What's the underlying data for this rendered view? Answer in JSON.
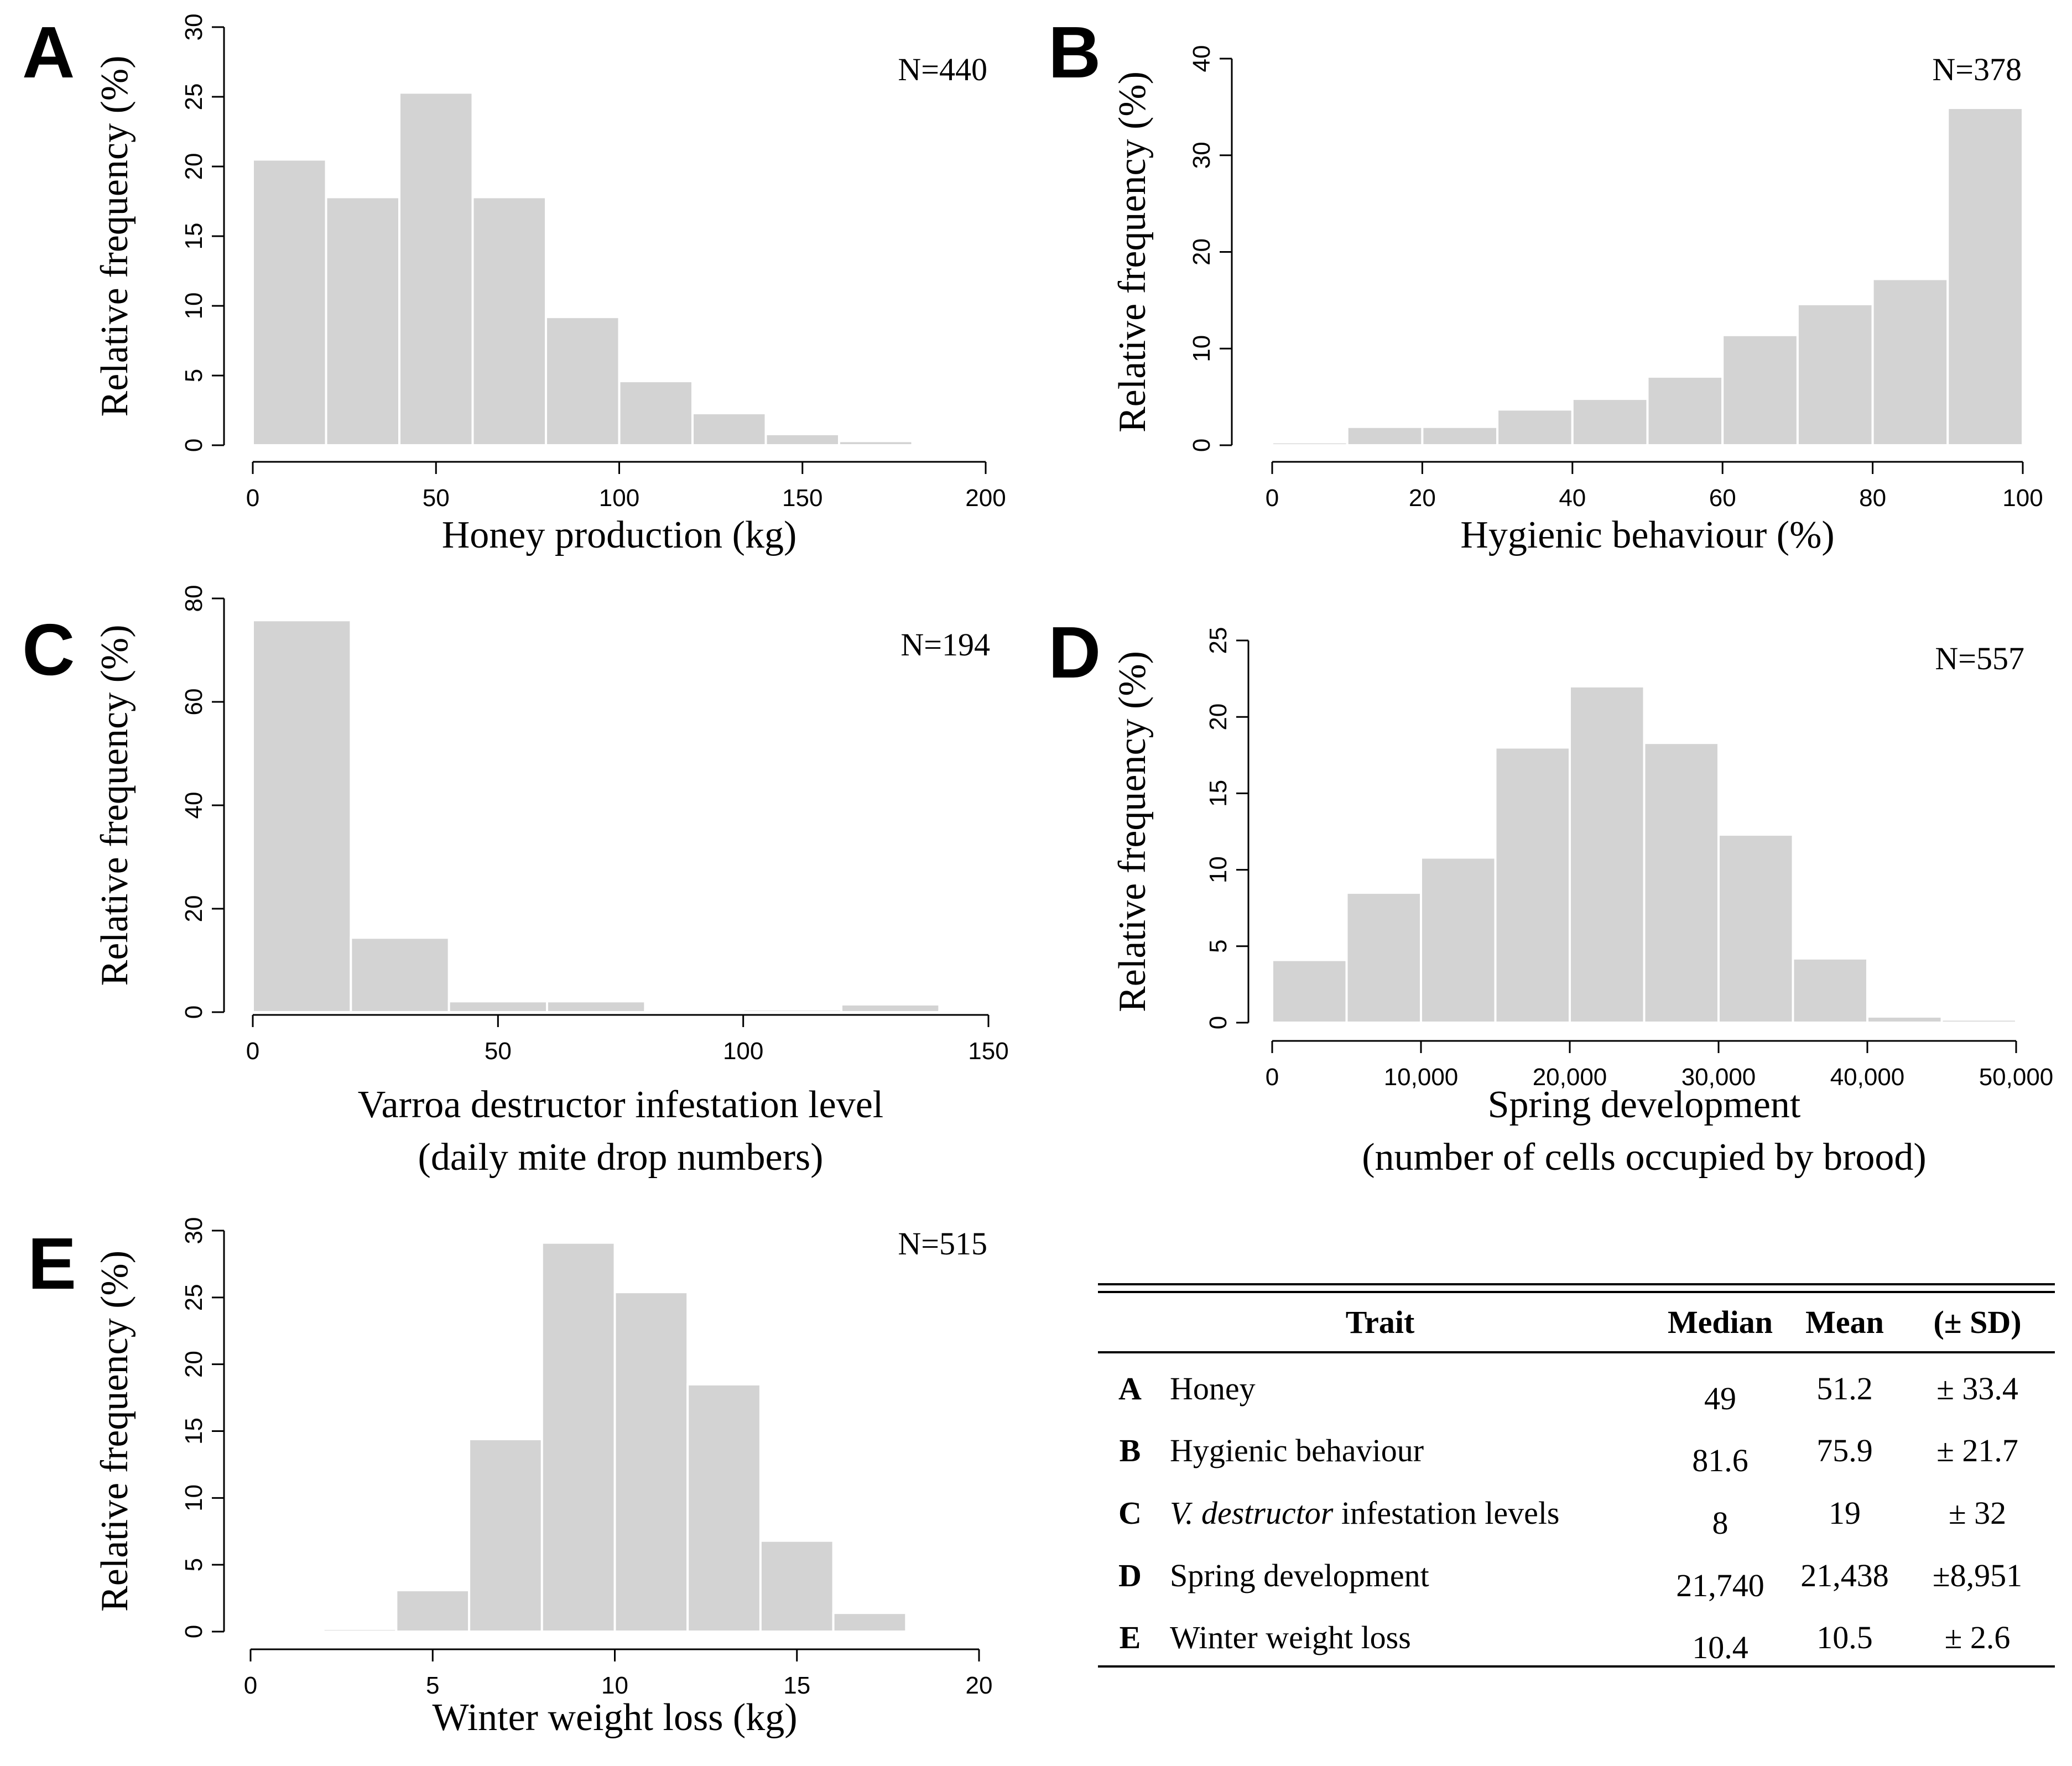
{
  "chart_data": [
    {
      "type": "bar",
      "panel": "A",
      "n_label": "N=440",
      "xlabel": [
        "Honey production (kg)"
      ],
      "ylabel": "Relative frequency (%)",
      "bin_edges": [
        0,
        20,
        40,
        60,
        80,
        100,
        120,
        140,
        160,
        180
      ],
      "values": [
        20.5,
        17.8,
        25.3,
        17.8,
        9.2,
        4.6,
        2.3,
        0.8,
        0.3
      ],
      "xlim": [
        0,
        200
      ],
      "ylim": [
        0,
        30
      ],
      "xticks": [
        0,
        50,
        100,
        150,
        200
      ],
      "yticks": [
        0,
        5,
        10,
        15,
        20,
        25,
        30
      ],
      "xtick_labels": [
        "0",
        "50",
        "100",
        "150",
        "200"
      ],
      "ytick_labels": [
        "0",
        "5",
        "10",
        "15",
        "20",
        "25",
        "30"
      ]
    },
    {
      "type": "bar",
      "panel": "B",
      "n_label": "N=378",
      "xlabel": [
        "Hygienic behaviour (%)"
      ],
      "ylabel": "Relative frequency (%)",
      "bin_edges": [
        0,
        10,
        20,
        30,
        40,
        50,
        60,
        70,
        80,
        90,
        100
      ],
      "values": [
        0.3,
        1.9,
        1.9,
        3.7,
        4.8,
        7.1,
        11.4,
        14.6,
        17.2,
        34.9
      ],
      "xlim": [
        0,
        100
      ],
      "ylim": [
        0,
        40
      ],
      "xticks": [
        0,
        20,
        40,
        60,
        80,
        100
      ],
      "yticks": [
        0,
        10,
        20,
        30,
        40
      ],
      "xtick_labels": [
        "0",
        "20",
        "40",
        "60",
        "80",
        "100"
      ],
      "ytick_labels": [
        "0",
        "10",
        "20",
        "30",
        "40"
      ]
    },
    {
      "type": "bar",
      "panel": "C",
      "n_label": "N=194",
      "xlabel": [
        "Varroa destructor infestation level",
        "(daily mite drop numbers)"
      ],
      "ylabel": "Relative frequency (%)",
      "bin_edges": [
        0,
        20,
        40,
        60,
        80,
        100,
        120,
        140,
        160
      ],
      "values": [
        75.8,
        14.4,
        2.1,
        2.1,
        0.3,
        0.5,
        1.5,
        0.2
      ],
      "xlim": [
        0,
        150
      ],
      "ylim": [
        0,
        80
      ],
      "xticks": [
        0,
        50,
        100,
        150
      ],
      "yticks": [
        0,
        20,
        40,
        60,
        80
      ],
      "xtick_labels": [
        "0",
        "50",
        "100",
        "150"
      ],
      "ytick_labels": [
        "0",
        "20",
        "40",
        "60",
        "80"
      ]
    },
    {
      "type": "bar",
      "panel": "D",
      "n_label": "N=557",
      "xlabel": [
        "Spring development",
        "(number of cells occupied by brood)"
      ],
      "ylabel": "Relative frequency (%)",
      "bin_edges": [
        0,
        5000,
        10000,
        15000,
        20000,
        25000,
        30000,
        35000,
        40000,
        45000,
        50000
      ],
      "values": [
        4.1,
        8.5,
        10.8,
        18.0,
        22.0,
        18.3,
        12.3,
        4.2,
        0.4,
        0.2
      ],
      "xlim": [
        0,
        50000
      ],
      "ylim": [
        0,
        25
      ],
      "xticks": [
        0,
        10000,
        20000,
        30000,
        40000,
        50000
      ],
      "yticks": [
        0,
        5,
        10,
        15,
        20,
        25
      ],
      "xtick_labels": [
        "0",
        "10,000",
        "20,000",
        "30,000",
        "40,000",
        "50,000"
      ],
      "ytick_labels": [
        "0",
        "5",
        "10",
        "15",
        "20",
        "25"
      ]
    },
    {
      "type": "bar",
      "panel": "E",
      "n_label": "N=515",
      "xlabel": [
        "Winter weight loss (kg)"
      ],
      "ylabel": "Relative frequency (%)",
      "bin_edges": [
        2,
        4,
        6,
        8,
        10,
        12,
        14,
        16,
        18
      ],
      "values": [
        0.2,
        3.1,
        14.4,
        29.1,
        25.4,
        18.5,
        6.8,
        1.4
      ],
      "xlim": [
        0,
        20
      ],
      "ylim": [
        0,
        30
      ],
      "xticks": [
        0,
        5,
        10,
        15,
        20
      ],
      "yticks": [
        0,
        5,
        10,
        15,
        20,
        25,
        30
      ],
      "xtick_labels": [
        "0",
        "5",
        "10",
        "15",
        "20"
      ],
      "ytick_labels": [
        "0",
        "5",
        "10",
        "15",
        "20",
        "25",
        "30"
      ]
    },
    {
      "type": "table",
      "headers": [
        "Trait",
        "Median",
        "Mean",
        "(± SD)"
      ],
      "rows": [
        {
          "letter": "A",
          "trait_parts": [
            {
              "text": "Honey",
              "italic": false
            }
          ],
          "median": "49",
          "mean": "51.2",
          "sd": "± 33.4"
        },
        {
          "letter": "B",
          "trait_parts": [
            {
              "text": "Hygienic behaviour",
              "italic": false
            }
          ],
          "median": "81.6",
          "mean": "75.9",
          "sd": "± 21.7"
        },
        {
          "letter": "C",
          "trait_parts": [
            {
              "text": "V. destructor",
              "italic": true
            },
            {
              "text": "  infestation levels",
              "italic": false
            }
          ],
          "median": "8",
          "mean": "19",
          "sd": "± 32"
        },
        {
          "letter": "D",
          "trait_parts": [
            {
              "text": "Spring development",
              "italic": false
            }
          ],
          "median": "21,740",
          "mean": "21,438",
          "sd": "±8,951"
        },
        {
          "letter": "E",
          "trait_parts": [
            {
              "text": "Winter weight loss",
              "italic": false
            }
          ],
          "median": "10.4",
          "mean": "10.5",
          "sd": "± 2.6"
        }
      ]
    }
  ]
}
